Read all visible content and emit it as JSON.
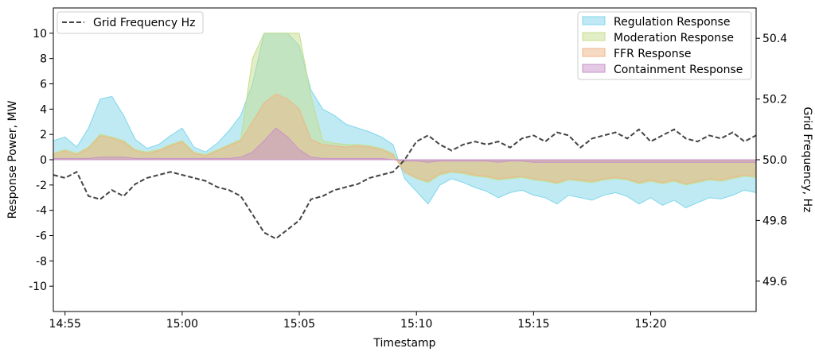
{
  "chart_data": {
    "type": "area",
    "xlabel": "Timestamp",
    "ylabel": "Response Power, MW",
    "y2label": "Grid Frequency, Hz",
    "xlim": [
      "14:54:30",
      "15:24:30"
    ],
    "ylim": [
      -12,
      12
    ],
    "y2lim": [
      49.5,
      50.5
    ],
    "x_ticks": [
      "14:55",
      "15:00",
      "15:05",
      "15:10",
      "15:15",
      "15:20"
    ],
    "y_ticks": [
      -10,
      -8,
      -6,
      -4,
      -2,
      0,
      2,
      4,
      6,
      8,
      10
    ],
    "y2_ticks": [
      "49.6",
      "49.8",
      "50.0",
      "50.2",
      "50.4"
    ],
    "grid": false,
    "legend_left": {
      "placement": "top-left",
      "entries": [
        "Grid Frequency Hz"
      ]
    },
    "legend_right": {
      "placement": "top-right",
      "entries": [
        "Regulation Response",
        "Moderation Response",
        "FFR Response",
        "Containment Response"
      ]
    },
    "x": [
      "14:54:30",
      "14:55:00",
      "14:55:30",
      "14:56:00",
      "14:56:30",
      "14:57:00",
      "14:57:30",
      "14:58:00",
      "14:58:30",
      "14:59:00",
      "14:59:30",
      "15:00:00",
      "15:00:30",
      "15:01:00",
      "15:01:30",
      "15:02:00",
      "15:02:30",
      "15:03:00",
      "15:03:30",
      "15:04:00",
      "15:04:30",
      "15:05:00",
      "15:05:30",
      "15:06:00",
      "15:06:30",
      "15:07:00",
      "15:07:30",
      "15:08:00",
      "15:08:30",
      "15:09:00",
      "15:09:30",
      "15:10:00",
      "15:10:30",
      "15:11:00",
      "15:11:30",
      "15:12:00",
      "15:12:30",
      "15:13:00",
      "15:13:30",
      "15:14:00",
      "15:14:30",
      "15:15:00",
      "15:15:30",
      "15:16:00",
      "15:16:30",
      "15:17:00",
      "15:17:30",
      "15:18:00",
      "15:18:30",
      "15:19:00",
      "15:19:30",
      "15:20:00",
      "15:20:30",
      "15:21:00",
      "15:21:30",
      "15:22:00",
      "15:22:30",
      "15:23:00",
      "15:23:30",
      "15:24:00",
      "15:24:30"
    ],
    "series": [
      {
        "name": "Regulation Response",
        "color": "#7fd6ea",
        "values": [
          1.5,
          1.8,
          1.0,
          2.5,
          4.8,
          5.0,
          3.5,
          1.6,
          0.9,
          1.2,
          1.9,
          2.5,
          1.0,
          0.6,
          1.3,
          2.3,
          3.5,
          6.0,
          10.0,
          10.0,
          10.0,
          9.0,
          5.5,
          4.0,
          3.5,
          2.8,
          2.5,
          2.2,
          1.8,
          1.2,
          -1.5,
          -2.5,
          -3.5,
          -2.0,
          -1.5,
          -1.8,
          -2.2,
          -2.5,
          -3.0,
          -2.6,
          -2.4,
          -2.8,
          -3.0,
          -3.5,
          -2.8,
          -3.0,
          -3.2,
          -2.8,
          -2.6,
          -2.9,
          -3.5,
          -3.0,
          -3.6,
          -3.2,
          -3.8,
          -3.4,
          -3.0,
          -3.1,
          -2.8,
          -2.4,
          -2.6
        ]
      },
      {
        "name": "Moderation Response",
        "color": "#c5dd8c",
        "values": [
          0.5,
          0.8,
          0.5,
          1.0,
          2.0,
          1.8,
          1.5,
          0.8,
          0.6,
          0.8,
          1.2,
          1.5,
          0.6,
          0.4,
          0.8,
          1.2,
          1.6,
          8.0,
          10.0,
          10.0,
          10.0,
          10.0,
          5.0,
          1.5,
          1.3,
          1.2,
          1.2,
          1.1,
          0.9,
          0.5,
          -1.0,
          -1.5,
          -1.8,
          -1.2,
          -1.0,
          -1.1,
          -1.3,
          -1.4,
          -1.6,
          -1.5,
          -1.4,
          -1.6,
          -1.7,
          -1.9,
          -1.6,
          -1.7,
          -1.8,
          -1.6,
          -1.5,
          -1.6,
          -1.9,
          -1.7,
          -1.9,
          -1.7,
          -2.0,
          -1.8,
          -1.6,
          -1.7,
          -1.5,
          -1.3,
          -1.4
        ]
      },
      {
        "name": "FFR Response",
        "color": "#efb685",
        "values": [
          0.4,
          0.7,
          0.4,
          0.9,
          1.9,
          1.7,
          1.4,
          0.7,
          0.5,
          0.7,
          1.1,
          1.4,
          0.5,
          0.3,
          0.7,
          1.1,
          1.5,
          3.0,
          4.5,
          5.2,
          4.8,
          4.0,
          1.6,
          1.2,
          1.1,
          1.0,
          1.1,
          1.0,
          0.8,
          0.4,
          -1.0,
          -1.4,
          -1.7,
          -1.1,
          -0.9,
          -1.0,
          -1.2,
          -1.3,
          -1.5,
          -1.4,
          -1.3,
          -1.5,
          -1.6,
          -1.8,
          -1.5,
          -1.6,
          -1.7,
          -1.5,
          -1.4,
          -1.5,
          -1.8,
          -1.6,
          -1.8,
          -1.6,
          -1.9,
          -1.7,
          -1.5,
          -1.6,
          -1.4,
          -1.2,
          -1.3
        ]
      },
      {
        "name": "Containment Response",
        "color": "#c794c8",
        "values": [
          0.1,
          0.1,
          0.1,
          0.1,
          0.2,
          0.2,
          0.2,
          0.1,
          0.1,
          0.1,
          0.1,
          0.1,
          0.1,
          0.1,
          0.1,
          0.1,
          0.2,
          0.6,
          1.5,
          2.5,
          1.8,
          0.8,
          0.2,
          0.1,
          0.1,
          0.1,
          0.1,
          0.1,
          0.1,
          0.0,
          -0.1,
          -0.1,
          -0.2,
          -0.1,
          -0.1,
          -0.1,
          -0.1,
          -0.1,
          -0.2,
          -0.1,
          -0.1,
          -0.2,
          -0.2,
          -0.2,
          -0.2,
          -0.2,
          -0.2,
          -0.2,
          -0.2,
          -0.2,
          -0.2,
          -0.2,
          -0.2,
          -0.2,
          -0.2,
          -0.2,
          -0.2,
          -0.2,
          -0.2,
          -0.2,
          -0.2
        ]
      },
      {
        "name": "Grid Frequency Hz",
        "color": "#444444",
        "axis": "right",
        "style": "dashed",
        "values": [
          49.95,
          49.94,
          49.96,
          49.88,
          49.87,
          49.9,
          49.88,
          49.92,
          49.94,
          49.95,
          49.96,
          49.95,
          49.94,
          49.93,
          49.91,
          49.9,
          49.88,
          49.82,
          49.76,
          49.74,
          49.77,
          49.8,
          49.87,
          49.88,
          49.9,
          49.91,
          49.92,
          49.94,
          49.95,
          49.96,
          50.0,
          50.06,
          50.08,
          50.05,
          50.03,
          50.05,
          50.06,
          50.05,
          50.06,
          50.04,
          50.07,
          50.08,
          50.06,
          50.09,
          50.08,
          50.04,
          50.07,
          50.08,
          50.09,
          50.07,
          50.1,
          50.06,
          50.08,
          50.1,
          50.07,
          50.06,
          50.08,
          50.07,
          50.09,
          50.06,
          50.08
        ]
      }
    ]
  }
}
